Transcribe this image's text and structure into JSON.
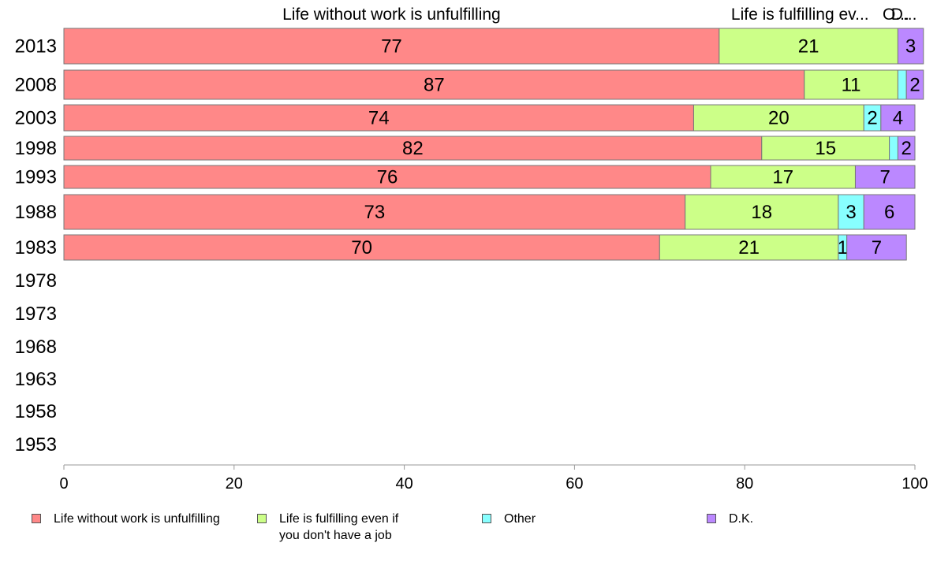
{
  "chart_data": {
    "type": "bar",
    "orientation": "horizontal",
    "stacked": true,
    "categories": [
      "2013",
      "2008",
      "2003",
      "1998",
      "1993",
      "1988",
      "1983",
      "1978",
      "1973",
      "1968",
      "1963",
      "1958",
      "1953"
    ],
    "series": [
      {
        "name": "Life without work is unfulfilling",
        "color": "#ff8888",
        "values": [
          77,
          87,
          74,
          82,
          76,
          73,
          70,
          null,
          null,
          null,
          null,
          null,
          null
        ]
      },
      {
        "name": "Life is fulfilling even if you don't have a job",
        "color": "#ccff88",
        "values": [
          21,
          11,
          20,
          15,
          17,
          18,
          21,
          null,
          null,
          null,
          null,
          null,
          null
        ]
      },
      {
        "name": "Other",
        "color": "#88ffff",
        "values": [
          0,
          1,
          2,
          1,
          0,
          3,
          1,
          null,
          null,
          null,
          null,
          null,
          null
        ]
      },
      {
        "name": "D.K.",
        "color": "#bb88ff",
        "values": [
          3,
          2,
          4,
          2,
          7,
          6,
          7,
          null,
          null,
          null,
          null,
          null,
          null
        ]
      }
    ],
    "data_labels": [
      [
        "77",
        "21",
        "",
        "3"
      ],
      [
        "87",
        "11",
        "",
        "2"
      ],
      [
        "74",
        "20",
        "2",
        "4"
      ],
      [
        "82",
        "15",
        "",
        "2"
      ],
      [
        "76",
        "17",
        "",
        "7"
      ],
      [
        "73",
        "18",
        "3",
        "6"
      ],
      [
        "70",
        "21",
        "1",
        "7"
      ]
    ],
    "top_labels": [
      "Life without work is unfulfilling",
      "Life is fulfilling ev...",
      "O...",
      "D..."
    ],
    "xlim": [
      0,
      100
    ],
    "xticks": [
      0,
      20,
      40,
      60,
      80,
      100
    ],
    "grid": false,
    "legend_position": "bottom"
  },
  "legend": {
    "items": [
      {
        "label": "Life without work is unfulfilling",
        "color": "#ff8888"
      },
      {
        "label": "Life is fulfilling even if\nyou don't have a job",
        "color": "#ccff88"
      },
      {
        "label": "Other",
        "color": "#88ffff"
      },
      {
        "label": "D.K.",
        "color": "#bb88ff"
      }
    ]
  }
}
